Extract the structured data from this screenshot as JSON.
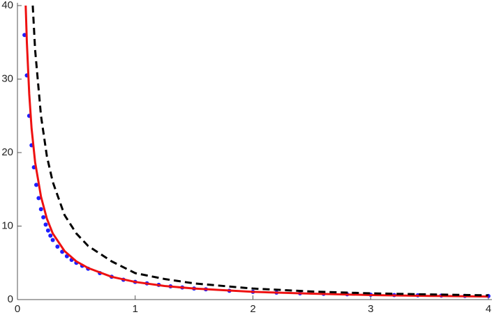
{
  "chart_data": {
    "type": "line",
    "xlim": [
      0,
      4
    ],
    "ylim": [
      0,
      40
    ],
    "xticks": [
      0,
      1,
      2,
      3,
      4
    ],
    "yticks": [
      0,
      10,
      20,
      30,
      40
    ],
    "series": [
      {
        "color": "#1f1fff",
        "style": "dots",
        "x": [
          0.06,
          0.08,
          0.1,
          0.12,
          0.14,
          0.16,
          0.18,
          0.2,
          0.22,
          0.24,
          0.26,
          0.28,
          0.3,
          0.34,
          0.38,
          0.42,
          0.46,
          0.5,
          0.55,
          0.6,
          0.7,
          0.8,
          0.9,
          1,
          1.1,
          1.2,
          1.3,
          1.4,
          1.5,
          1.6,
          1.8,
          2,
          2.2,
          2.4,
          2.6,
          2.8,
          3,
          3.2,
          3.4,
          3.6,
          3.8,
          4
        ],
        "values": [
          36,
          30.5,
          25,
          21,
          18,
          15.6,
          13.8,
          12.3,
          11.2,
          10.2,
          9.4,
          8.7,
          8.1,
          7.2,
          6.5,
          5.9,
          5.4,
          5.0,
          4.6,
          4.2,
          3.6,
          3.1,
          2.7,
          2.4,
          2.2,
          2.0,
          1.8,
          1.65,
          1.5,
          1.4,
          1.2,
          1.05,
          0.95,
          0.85,
          0.78,
          0.72,
          0.66,
          0.62,
          0.58,
          0.54,
          0.5,
          0.48
        ]
      },
      {
        "color": "#ee1111",
        "style": "solid",
        "x": [
          0.07,
          0.08,
          0.1,
          0.12,
          0.15,
          0.2,
          0.25,
          0.3,
          0.4,
          0.5,
          0.6,
          0.8,
          1,
          1.25,
          1.5,
          2,
          2.5,
          3,
          3.5,
          4
        ],
        "values": [
          40,
          35,
          28,
          23.3,
          18.7,
          14,
          11,
          9,
          6.6,
          5.2,
          4.3,
          3.1,
          2.4,
          1.85,
          1.5,
          1.05,
          0.8,
          0.62,
          0.5,
          0.42
        ]
      },
      {
        "color": "#000000",
        "style": "dashed",
        "x": [
          0.13,
          0.15,
          0.2,
          0.25,
          0.3,
          0.4,
          0.5,
          0.6,
          0.8,
          1,
          1.25,
          1.5,
          2,
          2.5,
          3,
          3.5,
          4
        ],
        "values": [
          40,
          34,
          25,
          19.5,
          16,
          11.5,
          9,
          7.3,
          5.2,
          3.6,
          2.8,
          2.2,
          1.5,
          1.1,
          0.85,
          0.7,
          0.58
        ]
      }
    ]
  }
}
